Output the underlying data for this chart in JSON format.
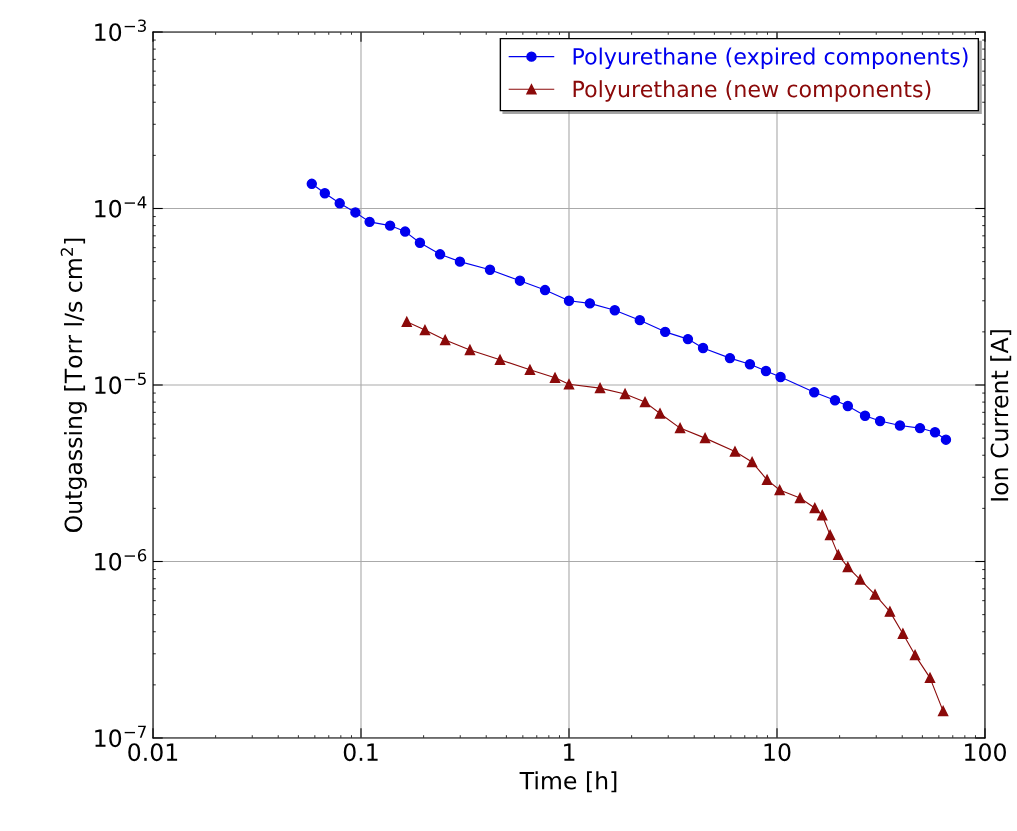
{
  "chart_data": {
    "type": "line",
    "xlabel": "Time [h]",
    "ylabel": "Outgassing [Torr l/s cm$^{2}$]",
    "y2label": "Ion Current [A]",
    "log": "xy",
    "grid": true,
    "legend": "top right",
    "xlim": [
      0.01,
      100
    ],
    "xticks": [
      0.01,
      0.1,
      1,
      10,
      100
    ],
    "ylim": [
      1e-07,
      0.001
    ],
    "yticks": [
      {
        "value": 1e-07,
        "label": "10$^{−7}$"
      },
      {
        "value": 1e-06,
        "label": "10$^{−6}$"
      },
      {
        "value": 1e-05,
        "label": "10$^{−5}$"
      },
      {
        "value": 0.0001,
        "label": "10$^{−4}$"
      },
      {
        "value": 0.001,
        "label": "10$^{−3}$"
      }
    ],
    "series": [
      {
        "name": "Polyurethane (expired components)",
        "color": "#0000ee",
        "marker": "circle",
        "x": [
          0.058,
          0.067,
          0.079,
          0.094,
          0.11,
          0.138,
          0.163,
          0.192,
          0.24,
          0.299,
          0.417,
          0.581,
          0.767,
          1.0,
          1.26,
          1.66,
          2.19,
          2.9,
          3.73,
          4.41,
          5.94,
          7.41,
          8.85,
          10.4,
          15.1,
          19.0,
          21.9,
          26.5,
          31.3,
          39.0,
          48.7,
          57.5,
          64.9
        ],
        "values": [
          0.000138,
          0.000122,
          0.000107,
          9.5e-05,
          8.4e-05,
          8e-05,
          7.4e-05,
          6.4e-05,
          5.5e-05,
          5e-05,
          4.5e-05,
          3.9e-05,
          3.45e-05,
          3e-05,
          2.9e-05,
          2.65e-05,
          2.33e-05,
          2e-05,
          1.82e-05,
          1.62e-05,
          1.42e-05,
          1.31e-05,
          1.2e-05,
          1.11e-05,
          9.1e-06,
          8.2e-06,
          7.6e-06,
          6.7e-06,
          6.25e-06,
          5.9e-06,
          5.7e-06,
          5.4e-06,
          4.9e-06
        ]
      },
      {
        "name": "Polyurethane (new components)",
        "color": "#8b0a0a",
        "marker": "triangle",
        "x": [
          0.166,
          0.203,
          0.254,
          0.334,
          0.466,
          0.649,
          0.857,
          1.0,
          1.41,
          1.86,
          2.32,
          2.74,
          3.42,
          4.51,
          6.28,
          7.59,
          8.96,
          10.3,
          12.9,
          15.2,
          16.5,
          18.0,
          19.7,
          21.9,
          25.1,
          29.6,
          34.9,
          40.3,
          46.1,
          54.4,
          62.9
        ],
        "values": [
          2.28e-05,
          2.05e-05,
          1.8e-05,
          1.58e-05,
          1.39e-05,
          1.22e-05,
          1.1e-05,
          1.01e-05,
          9.6e-06,
          8.9e-06,
          8e-06,
          6.9e-06,
          5.7e-06,
          5e-06,
          4.2e-06,
          3.66e-06,
          2.9e-06,
          2.54e-06,
          2.29e-06,
          2.01e-06,
          1.83e-06,
          1.41e-06,
          1.09e-06,
          9.3e-07,
          7.9e-07,
          6.5e-07,
          5.2e-07,
          3.9e-07,
          2.95e-07,
          2.19e-07,
          1.42e-07
        ]
      }
    ]
  }
}
